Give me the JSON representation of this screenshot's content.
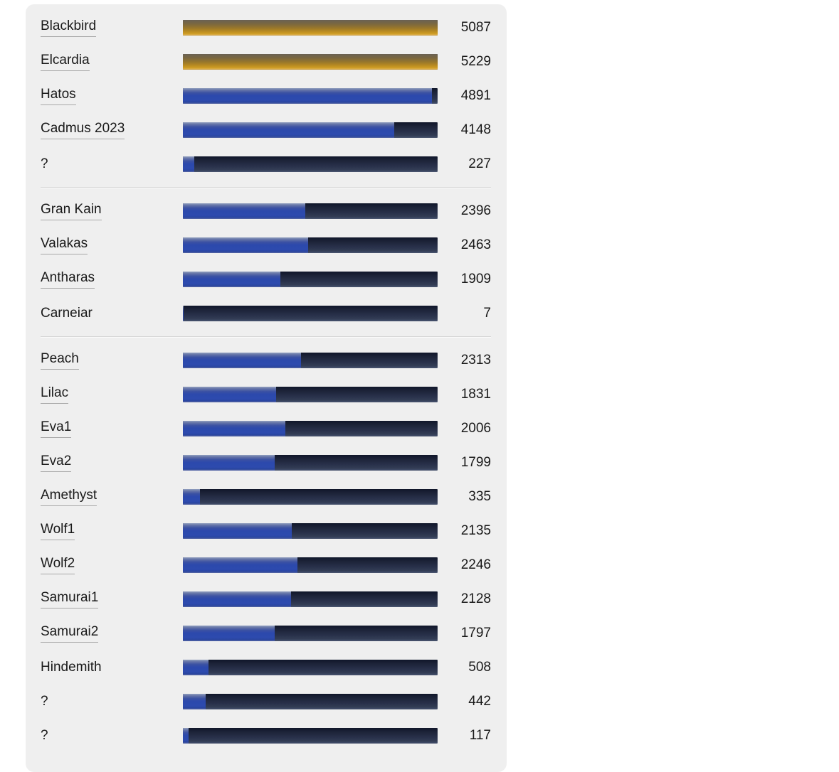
{
  "page": {
    "background": "#ffffff"
  },
  "panel": {
    "background": "#efefef",
    "name": "server-status-panel"
  },
  "bars": {
    "max_capacity": 5000,
    "track_gradient": [
      "#10162a 0%",
      "#1c2338 25%",
      "#28304a 60%",
      "#333d55 85%",
      "#3d4864 94%",
      "#515b73 100%"
    ],
    "fill_gradients": {
      "blue": [
        "#93a0c0 0%",
        "#6675a8 12%",
        "#3b51a3 30%",
        "#2c49ac 48%",
        "#2d4aae 78%",
        "#2a45a0 90%",
        "#5a69a4 100%"
      ],
      "gold": [
        "#6a6154 0%",
        "#7a6740 25%",
        "#96762c 50%",
        "#b88a21 72%",
        "#cf9c24 88%",
        "#dcae4e 96%",
        "#b08526 100%"
      ]
    }
  },
  "groups": [
    {
      "rows": [
        {
          "label": "Blackbird",
          "value": 5087,
          "bar": "gold",
          "link": true
        },
        {
          "label": "Elcardia",
          "value": 5229,
          "bar": "gold",
          "link": true
        },
        {
          "label": "Hatos",
          "value": 4891,
          "bar": "blue",
          "link": true
        },
        {
          "label": "Cadmus 2023",
          "value": 4148,
          "bar": "blue",
          "link": true
        },
        {
          "label": "?",
          "value": 227,
          "bar": "blue",
          "link": false
        }
      ]
    },
    {
      "rows": [
        {
          "label": "Gran Kain",
          "value": 2396,
          "bar": "blue",
          "link": true
        },
        {
          "label": "Valakas",
          "value": 2463,
          "bar": "blue",
          "link": true
        },
        {
          "label": "Antharas",
          "value": 1909,
          "bar": "blue",
          "link": true
        },
        {
          "label": "Carneiar",
          "value": 7,
          "bar": "blue",
          "link": false
        }
      ]
    },
    {
      "rows": [
        {
          "label": "Peach",
          "value": 2313,
          "bar": "blue",
          "link": true
        },
        {
          "label": "Lilac",
          "value": 1831,
          "bar": "blue",
          "link": true
        },
        {
          "label": "Eva1",
          "value": 2006,
          "bar": "blue",
          "link": true
        },
        {
          "label": "Eva2",
          "value": 1799,
          "bar": "blue",
          "link": true
        },
        {
          "label": "Amethyst",
          "value": 335,
          "bar": "blue",
          "link": true
        },
        {
          "label": "Wolf1",
          "value": 2135,
          "bar": "blue",
          "link": true
        },
        {
          "label": "Wolf2",
          "value": 2246,
          "bar": "blue",
          "link": true
        },
        {
          "label": "Samurai1",
          "value": 2128,
          "bar": "blue",
          "link": true
        },
        {
          "label": "Samurai2",
          "value": 1797,
          "bar": "blue",
          "link": true
        },
        {
          "label": "Hindemith",
          "value": 508,
          "bar": "blue",
          "link": false
        },
        {
          "label": "?",
          "value": 442,
          "bar": "blue",
          "link": false
        },
        {
          "label": "?",
          "value": 117,
          "bar": "blue",
          "link": false
        }
      ]
    }
  ]
}
